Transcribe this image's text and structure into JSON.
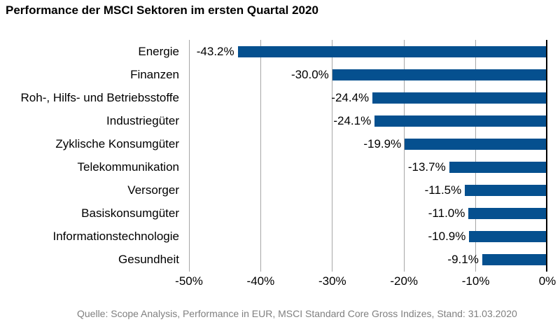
{
  "title": "Performance der MSCI Sektoren im ersten Quartal 2020",
  "footer": "Quelle: Scope Analysis, Performance in EUR, MSCI Standard Core Gross Indizes, Stand: 31.03.2020",
  "colors": {
    "bar": "#05508F",
    "gridline": "#A6A6A6",
    "zero_axis": "#000000",
    "title_text": "#000000",
    "footer_text": "#808080"
  },
  "chart_data": {
    "type": "bar",
    "orientation": "horizontal",
    "title": "Performance der MSCI Sektoren im ersten Quartal 2020",
    "xlabel": "",
    "ylabel": "",
    "xlim": [
      -50,
      0
    ],
    "grid": "vertical",
    "legend": "none",
    "categories": [
      "Energie",
      "Finanzen",
      "Roh-, Hilfs- und Betriebsstoffe",
      "Industriegüter",
      "Zyklische Konsumgüter",
      "Telekommunikation",
      "Versorger",
      "Basiskonsumgüter",
      "Informationstechnologie",
      "Gesundheit"
    ],
    "values": [
      -43.2,
      -30.0,
      -24.4,
      -24.1,
      -19.9,
      -13.7,
      -11.5,
      -11.0,
      -10.9,
      -9.1
    ],
    "value_labels": [
      "-43.2%",
      "-30.0%",
      "-24.4%",
      "-24.1%",
      "-19.9%",
      "-13.7%",
      "-11.5%",
      "-11.0%",
      "-10.9%",
      "-9.1%"
    ],
    "x_ticks": [
      "-50%",
      "-40%",
      "-30%",
      "-20%",
      "-10%",
      "0%"
    ],
    "x_tick_values": [
      -50,
      -40,
      -30,
      -20,
      -10,
      0
    ]
  }
}
